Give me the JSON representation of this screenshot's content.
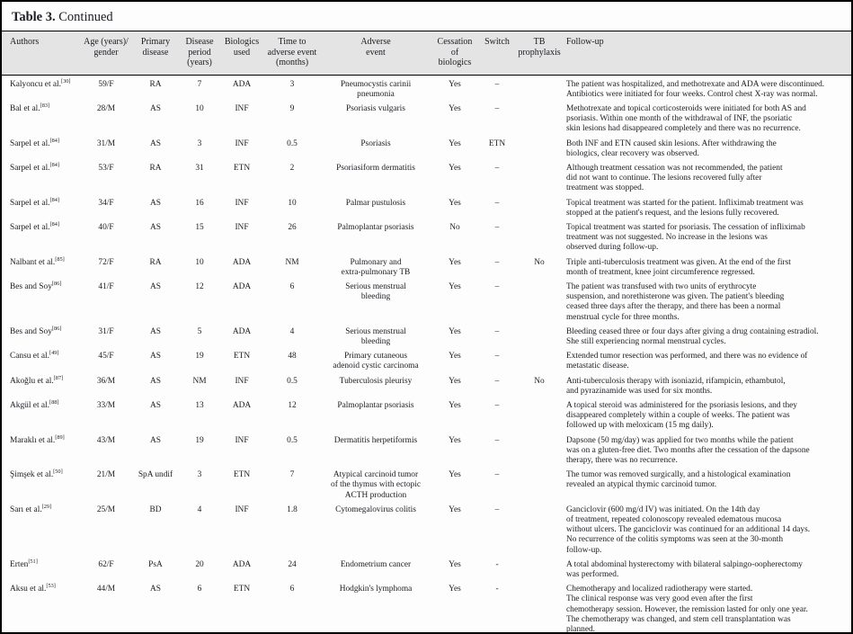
{
  "title": {
    "bold": "Table 3.",
    "rest": " Continued"
  },
  "header": {
    "authors": "Authors",
    "age": "Age (years)/\ngender",
    "primary": "Primary\ndisease",
    "period": "Disease\nperiod\n(years)",
    "biologics": "Biologics\nused",
    "time": "Time to\nadverse event\n(months)",
    "adverse": "Adverse\nevent",
    "cessation": "Cessation of\nbiologics",
    "switch": "Switch",
    "tb": "TB\nprophylaxis",
    "followup": "Follow-up"
  },
  "colors": {
    "header_band": "#e4e4e4",
    "rule": "#000000",
    "text": "#1c1c22"
  },
  "table": {
    "rows": [
      {
        "author": "Kalyoncu et al.",
        "ref": "[30]",
        "age": "59/F",
        "primary": "RA",
        "period": "7",
        "biologics": "ADA",
        "time": "3",
        "adverse": "Pneumocystis carinii\npneumonia",
        "cessation": "Yes",
        "switch": "–",
        "tb": "",
        "followup": "The patient was hospitalized, and methotrexate and ADA were discontinued.\nAntibiotics were initiated for four weeks. Control chest X-ray was normal."
      },
      {
        "author": "Bal et al.",
        "ref": "[83]",
        "age": "28/M",
        "primary": "AS",
        "period": "10",
        "biologics": "INF",
        "time": "9",
        "adverse": "Psoriasis vulgaris",
        "cessation": "Yes",
        "switch": "–",
        "tb": "",
        "followup": "Methotrexate and topical corticosteroids were initiated for both AS and\npsoriasis. Within one month of the withdrawal of INF, the psoriatic\nskin lesions had disappeared completely and there was no recurrence."
      },
      {
        "author": "Sarpel et al.",
        "ref": "[84]",
        "age": "31/M",
        "primary": "AS",
        "period": "3",
        "biologics": "INF",
        "time": "0.5",
        "adverse": "Psoriasis",
        "cessation": "Yes",
        "switch": "ETN",
        "tb": "",
        "followup": "Both INF and ETN caused skin lesions. After withdrawing the\nbiologics, clear recovery was observed."
      },
      {
        "author": "Sarpel et al.",
        "ref": "[84]",
        "age": "53/F",
        "primary": "RA",
        "period": "31",
        "biologics": "ETN",
        "time": "2",
        "adverse": "Psoriasiform dermatitis",
        "cessation": "Yes",
        "switch": "–",
        "tb": "",
        "followup": "Although treatment cessation was not recommended, the patient\ndid not want to continue. The lesions recovered fully after\ntreatment was stopped."
      },
      {
        "author": "Sarpel et al.",
        "ref": "[84]",
        "age": "34/F",
        "primary": "AS",
        "period": "16",
        "biologics": "INF",
        "time": "10",
        "adverse": "Palmar pustulosis",
        "cessation": "Yes",
        "switch": "–",
        "tb": "",
        "followup": "Topical treatment was started for the patient. Infliximab treatment was\nstopped at the patient's request, and the lesions fully recovered."
      },
      {
        "author": "Sarpel et al.",
        "ref": "[84]",
        "age": "40/F",
        "primary": "AS",
        "period": "15",
        "biologics": "INF",
        "time": "26",
        "adverse": "Palmoplantar psoriasis",
        "cessation": "No",
        "switch": "–",
        "tb": "",
        "followup": "Topical treatment was started for psoriasis. The cessation of infliximab\ntreatment was not suggested. No increase in the lesions was\nobserved during follow-up."
      },
      {
        "author": "Nalbant et al.",
        "ref": "[85]",
        "age": "72/F",
        "primary": "RA",
        "period": "10",
        "biologics": "ADA",
        "time": "NM",
        "adverse": "Pulmonary and\nextra-pulmonary TB",
        "cessation": "Yes",
        "switch": "–",
        "tb": "No",
        "followup": "Triple anti-tuberculosis treatment was given. At the end of the first\nmonth of treatment, knee joint circumference regressed."
      },
      {
        "author": "Bes and Soy",
        "ref": "[86]",
        "age": "41/F",
        "primary": "AS",
        "period": "12",
        "biologics": "ADA",
        "time": "6",
        "adverse": "Serious menstrual\nbleeding",
        "cessation": "Yes",
        "switch": "–",
        "tb": "",
        "followup": "The patient was transfused with two units of erythrocyte\nsuspension, and norethisterone was given. The patient's bleeding\nceased three days after the therapy, and there has been a normal\nmenstrual cycle for three months."
      },
      {
        "author": "Bes and Soy",
        "ref": "[86]",
        "age": "31/F",
        "primary": "AS",
        "period": "5",
        "biologics": "ADA",
        "time": "4",
        "adverse": "Serious menstrual\nbleeding",
        "cessation": "Yes",
        "switch": "–",
        "tb": "",
        "followup": "Bleeding ceased three or four days after giving a drug containing estradiol.\nShe still experiencing normal menstrual cycles."
      },
      {
        "author": "Cansu et al.",
        "ref": "[49]",
        "age": "45/F",
        "primary": "AS",
        "period": "19",
        "biologics": "ETN",
        "time": "48",
        "adverse": "Primary cutaneous\nadenoid cystic carcinoma",
        "cessation": "Yes",
        "switch": "–",
        "tb": "",
        "followup": "Extended tumor resection was performed, and there was no evidence of\nmetastatic disease."
      },
      {
        "author": "Akoğlu et al.",
        "ref": "[87]",
        "age": "36/M",
        "primary": "AS",
        "period": "NM",
        "biologics": "INF",
        "time": "0.5",
        "adverse": "Tuberculosis pleurisy",
        "cessation": "Yes",
        "switch": "–",
        "tb": "No",
        "followup": "Anti-tuberculosis therapy with isoniazid, rifampicin, ethambutol,\nand pyrazinamide was used for six months."
      },
      {
        "author": "Akgül et al.",
        "ref": "[88]",
        "age": "33/M",
        "primary": "AS",
        "period": "13",
        "biologics": "ADA",
        "time": "12",
        "adverse": "Palmoplantar psoriasis",
        "cessation": "Yes",
        "switch": "–",
        "tb": "",
        "followup": "A topical steroid was administered for the psoriasis lesions, and they\ndisappeared completely within a couple of weeks. The patient was\nfollowed up with meloxicam (15 mg daily)."
      },
      {
        "author": "Maraklı et al.",
        "ref": "[89]",
        "age": "43/M",
        "primary": "AS",
        "period": "19",
        "biologics": "INF",
        "time": "0.5",
        "adverse": "Dermatitis herpetiformis",
        "cessation": "Yes",
        "switch": "–",
        "tb": "",
        "followup": "Dapsone (50 mg/day) was applied for two months while the patient\nwas on a gluten-free diet. Two months after the cessation of the dapsone\ntherapy, there was no recurrence."
      },
      {
        "author": "Şimşek et al.",
        "ref": "[50]",
        "age": "21/M",
        "primary": "SpA undif",
        "period": "3",
        "biologics": "ETN",
        "time": "7",
        "adverse": "Atypical carcinoid tumor\nof the thymus with ectopic\nACTH production",
        "cessation": "Yes",
        "switch": "–",
        "tb": "",
        "followup": "The tumor was removed surgically, and a histological examination\nrevealed an atypical thymic carcinoid tumor."
      },
      {
        "author": "Sarı et al.",
        "ref": "[29]",
        "age": "25/M",
        "primary": "BD",
        "period": "4",
        "biologics": "INF",
        "time": "1.8",
        "adverse": "Cytomegalovirus colitis",
        "cessation": "Yes",
        "switch": "–",
        "tb": "",
        "followup": "Ganciclovir (600 mg/d IV) was initiated. On the 14th day\nof treatment, repeated colonoscopy revealed edematous mucosa\nwithout ulcers. The ganciclovir was continued for an additional 14 days.\nNo recurrence of the colitis symptoms was seen at the 30-month\nfollow-up."
      },
      {
        "author": "Erten",
        "ref": "[51]",
        "age": "62/F",
        "primary": "PsA",
        "period": "20",
        "biologics": "ADA",
        "time": "24",
        "adverse": "Endometrium cancer",
        "cessation": "Yes",
        "switch": "-",
        "tb": "",
        "followup": "A total abdominal hysterectomy with bilateral salpingo-oopherectomy\nwas performed."
      },
      {
        "author": "Aksu et al.",
        "ref": "[53]",
        "age": "44/M",
        "primary": "AS",
        "period": "6",
        "biologics": "ETN",
        "time": "6",
        "adverse": "Hodgkin's lymphoma",
        "cessation": "Yes",
        "switch": "-",
        "tb": "",
        "followup": "Chemotherapy and localized radiotherapy were started.\nThe clinical response was very good even after the first\nchemotherapy session. However, the remission lasted for only one year.\nThe chemotherapy was changed, and stem cell transplantation was\nplanned."
      }
    ]
  }
}
